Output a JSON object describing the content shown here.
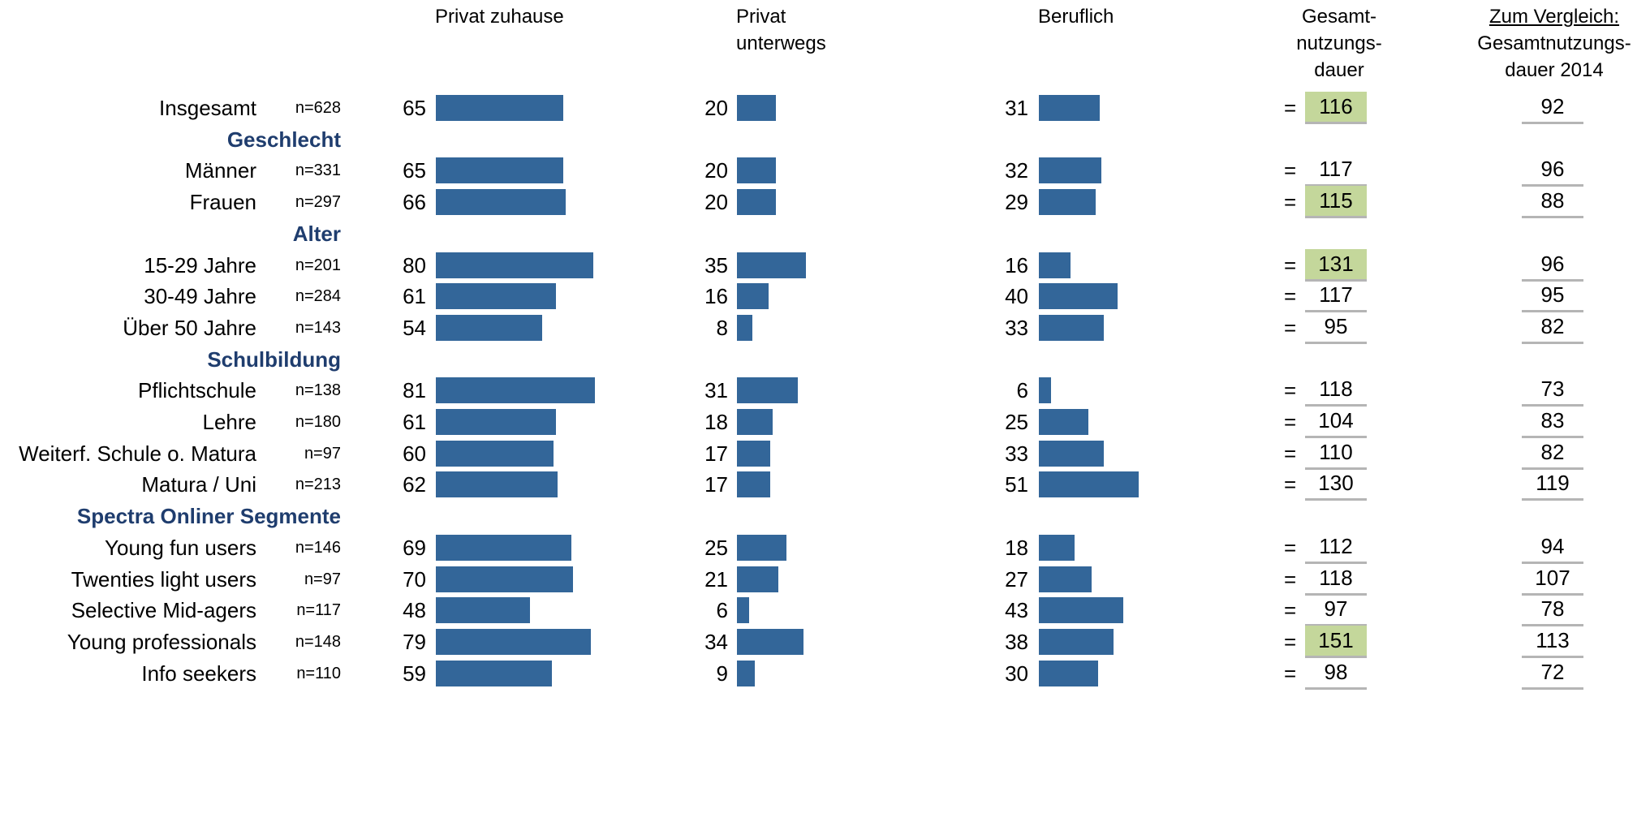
{
  "chart_data": {
    "type": "bar",
    "columns": {
      "privat_zuhause": "Privat zuhause",
      "privat_unterwegs_line1": "Privat",
      "privat_unterwegs_line2": "unterwegs",
      "beruflich": "Beruflich",
      "gesamt_line1": "Gesamt-",
      "gesamt_line2": "nutzungs-",
      "gesamt_line3": "dauer",
      "vergleich_line1": "Zum Vergleich:",
      "vergleich_line2": "Gesamtnutzungs-",
      "vergleich_line3": "dauer 2014"
    },
    "equals_sign": "=",
    "highlight_color": "#c4d79b",
    "bar_color": "#336699",
    "rows": [
      {
        "kind": "row",
        "label": "Insgesamt",
        "n": "n=628",
        "zuhause": 65,
        "unterwegs": 20,
        "beruflich": 31,
        "total": 116,
        "highlight": true,
        "vergleich": 92
      },
      {
        "kind": "group",
        "label": "Geschlecht"
      },
      {
        "kind": "row",
        "label": "Männer",
        "n": "n=331",
        "zuhause": 65,
        "unterwegs": 20,
        "beruflich": 32,
        "total": 117,
        "highlight": false,
        "vergleich": 96
      },
      {
        "kind": "row",
        "label": "Frauen",
        "n": "n=297",
        "zuhause": 66,
        "unterwegs": 20,
        "beruflich": 29,
        "total": 115,
        "highlight": true,
        "vergleich": 88
      },
      {
        "kind": "group",
        "label": "Alter"
      },
      {
        "kind": "row",
        "label": "15-29 Jahre",
        "n": "n=201",
        "zuhause": 80,
        "unterwegs": 35,
        "beruflich": 16,
        "total": 131,
        "highlight": true,
        "vergleich": 96
      },
      {
        "kind": "row",
        "label": "30-49 Jahre",
        "n": "n=284",
        "zuhause": 61,
        "unterwegs": 16,
        "beruflich": 40,
        "total": 117,
        "highlight": false,
        "vergleich": 95
      },
      {
        "kind": "row",
        "label": "Über 50 Jahre",
        "n": "n=143",
        "zuhause": 54,
        "unterwegs": 8,
        "beruflich": 33,
        "total": 95,
        "highlight": false,
        "vergleich": 82
      },
      {
        "kind": "group",
        "label": "Schulbildung"
      },
      {
        "kind": "row",
        "label": "Pflichtschule",
        "n": "n=138",
        "zuhause": 81,
        "unterwegs": 31,
        "beruflich": 6,
        "total": 118,
        "highlight": false,
        "vergleich": 73
      },
      {
        "kind": "row",
        "label": "Lehre",
        "n": "n=180",
        "zuhause": 61,
        "unterwegs": 18,
        "beruflich": 25,
        "total": 104,
        "highlight": false,
        "vergleich": 83
      },
      {
        "kind": "row",
        "label": "Weiterf. Schule o. Matura",
        "n": "n=97",
        "zuhause": 60,
        "unterwegs": 17,
        "beruflich": 33,
        "total": 110,
        "highlight": false,
        "vergleich": 82
      },
      {
        "kind": "row",
        "label": "Matura / Uni",
        "n": "n=213",
        "zuhause": 62,
        "unterwegs": 17,
        "beruflich": 51,
        "total": 130,
        "highlight": false,
        "vergleich": 119
      },
      {
        "kind": "group",
        "label": "Spectra Onliner Segmente"
      },
      {
        "kind": "row",
        "label": "Young fun users",
        "n": "n=146",
        "zuhause": 69,
        "unterwegs": 25,
        "beruflich": 18,
        "total": 112,
        "highlight": false,
        "vergleich": 94
      },
      {
        "kind": "row",
        "label": "Twenties light users",
        "n": "n=97",
        "zuhause": 70,
        "unterwegs": 21,
        "beruflich": 27,
        "total": 118,
        "highlight": false,
        "vergleich": 107
      },
      {
        "kind": "row",
        "label": "Selective Mid-agers",
        "n": "n=117",
        "zuhause": 48,
        "unterwegs": 6,
        "beruflich": 43,
        "total": 97,
        "highlight": false,
        "vergleich": 78
      },
      {
        "kind": "row",
        "label": "Young professionals",
        "n": "n=148",
        "zuhause": 79,
        "unterwegs": 34,
        "beruflich": 38,
        "total": 151,
        "highlight": true,
        "vergleich": 113
      },
      {
        "kind": "row",
        "label": "Info seekers",
        "n": "n=110",
        "zuhause": 59,
        "unterwegs": 9,
        "beruflich": 30,
        "total": 98,
        "highlight": false,
        "vergleich": 72
      }
    ]
  }
}
